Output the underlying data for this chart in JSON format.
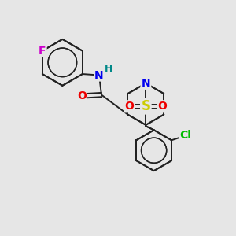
{
  "background_color": "#e6e6e6",
  "atoms": {
    "F": {
      "color": "#cc00cc",
      "size": 10
    },
    "Cl": {
      "color": "#00bb00",
      "size": 10
    },
    "N": {
      "color": "#0000ee",
      "size": 10
    },
    "O": {
      "color": "#ee0000",
      "size": 10
    },
    "S": {
      "color": "#cccc00",
      "size": 12
    },
    "H": {
      "color": "#008888",
      "size": 9
    }
  },
  "bond_color": "#222222",
  "bond_width": 1.4,
  "figsize": [
    3.0,
    3.0
  ],
  "dpi": 100
}
